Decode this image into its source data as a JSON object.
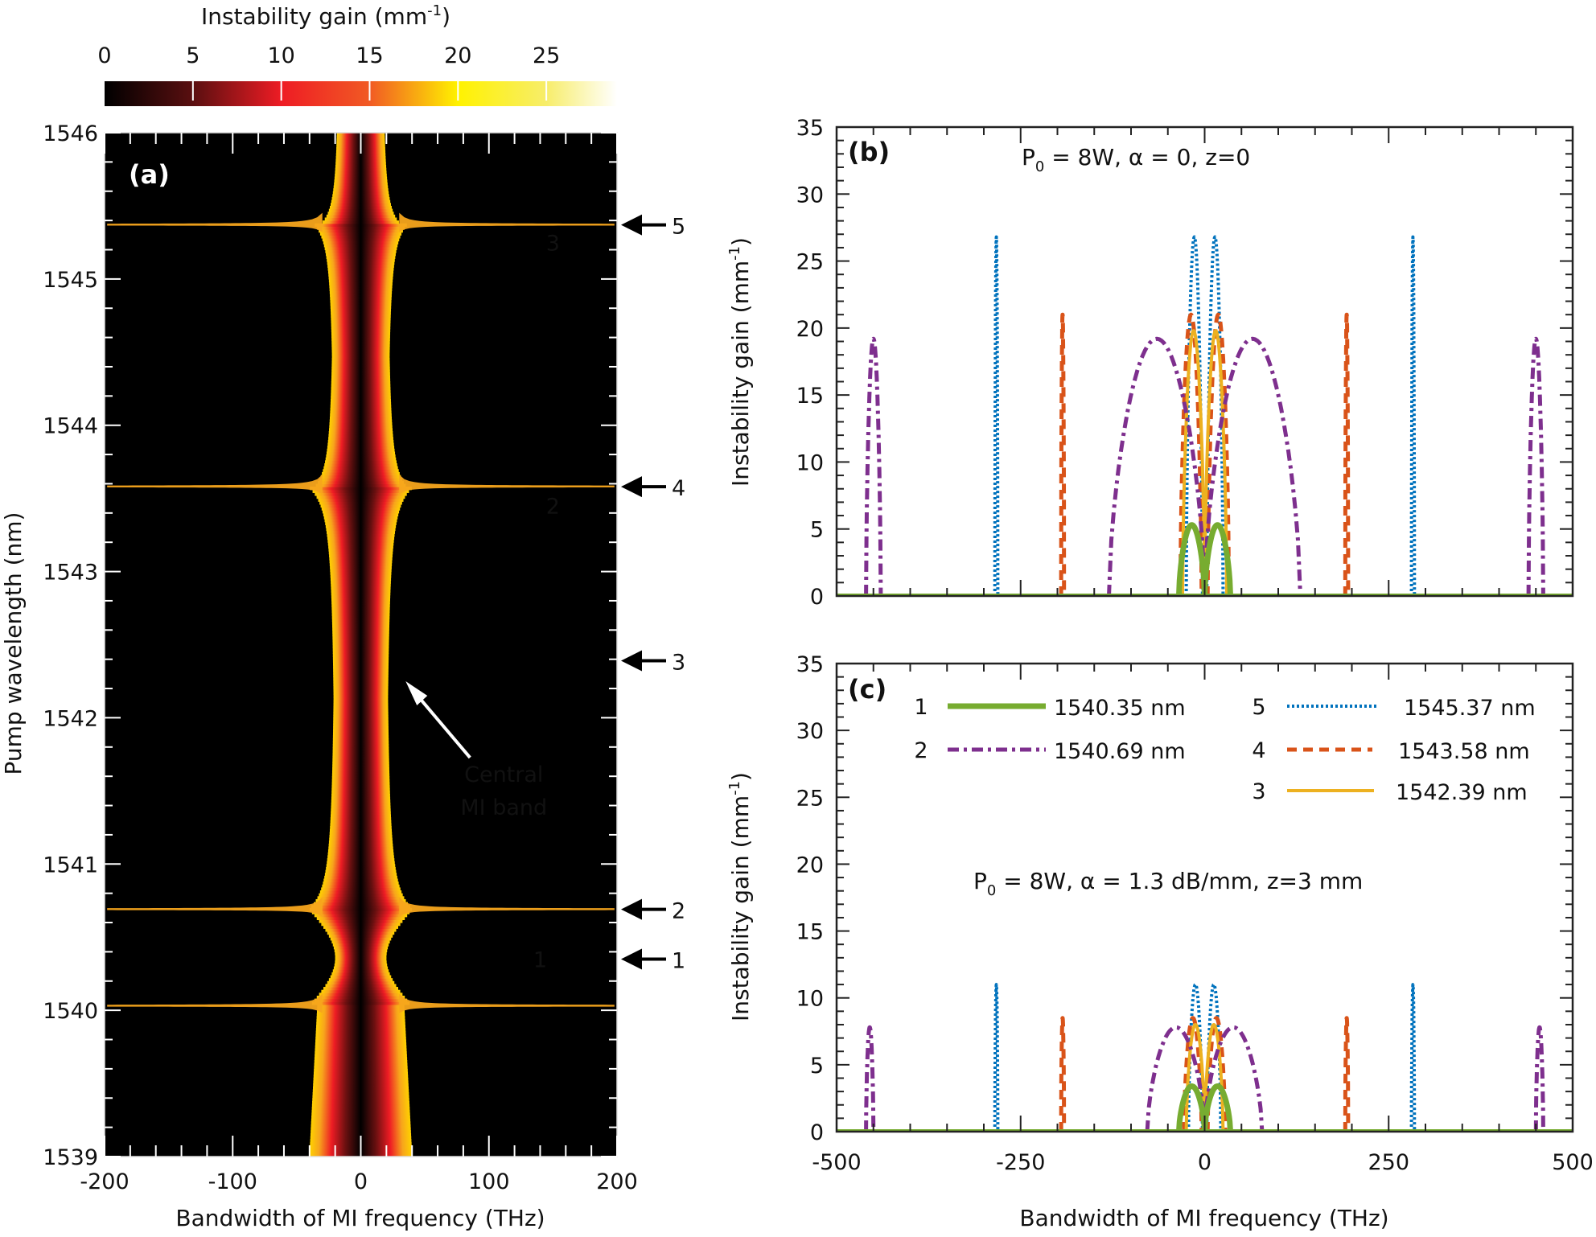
{
  "figure": {
    "colorbar": {
      "title": "Instability gain (mm",
      "title_sup": "-1",
      "title_end": ")",
      "ticks": [
        "0",
        "5",
        "10",
        "15",
        "20",
        "25"
      ],
      "tick_values": [
        0,
        5,
        10,
        15,
        20,
        25
      ],
      "range": [
        0,
        29
      ],
      "stops": [
        {
          "v": 0,
          "color": "#000000"
        },
        {
          "v": 5,
          "color": "#5a0f10"
        },
        {
          "v": 10,
          "color": "#ee1c24"
        },
        {
          "v": 15,
          "color": "#f15a24"
        },
        {
          "v": 20,
          "color": "#fff200"
        },
        {
          "v": 25,
          "color": "#f7ed6a"
        },
        {
          "v": 29,
          "color": "#ffffff"
        }
      ]
    }
  },
  "chart_data": [
    {
      "type": "heatmap",
      "panel_label": "(a)",
      "xlabel": "Bandwidth of MI frequency (THz)",
      "ylabel": "Pump wavelength (nm)",
      "xlim": [
        -200,
        200
      ],
      "ylim": [
        1539,
        1546
      ],
      "xticks": [
        -200,
        -100,
        0,
        100,
        200
      ],
      "xtick_labels": [
        "-200",
        "-100",
        "0",
        "100",
        "200"
      ],
      "yticks": [
        1539,
        1540,
        1541,
        1542,
        1543,
        1544,
        1545,
        1546
      ],
      "ytick_labels": [
        "1539",
        "1540",
        "1541",
        "1542",
        "1543",
        "1544",
        "1545",
        "1546"
      ],
      "description": "Instability gain map versus MI frequency detuning and pump wavelength; central MI band symmetric around 0 THz with side-band resonances near 1540.03, 1540.69, 1543.58 and 1545.37 nm",
      "resonance_lines_nm": [
        1540.03,
        1540.69,
        1543.58,
        1545.37
      ],
      "inner_annotations": [
        {
          "text": "3",
          "x": 150,
          "y": 1545.25
        },
        {
          "text": "2",
          "x": 150,
          "y": 1543.45
        },
        {
          "text": "1",
          "x": 140,
          "y": 1540.35
        }
      ],
      "arrow_annotation": {
        "text_line1": "Central",
        "text_line2": "MI band",
        "points_to_x": 30,
        "points_to_y": 1542.25
      },
      "side_markers": [
        {
          "label": "5",
          "y": 1545.37
        },
        {
          "label": "4",
          "y": 1543.58
        },
        {
          "label": "3",
          "y": 1542.39
        },
        {
          "label": "2",
          "y": 1540.69
        },
        {
          "label": "1",
          "y": 1540.35
        }
      ]
    },
    {
      "type": "line",
      "panel_label": "(b)",
      "annotation": {
        "p": "P",
        "sub": "0",
        "rest": " = 8W, α = 0, z=0"
      },
      "xlabel": "",
      "ylabel": "Instability gain (mm",
      "ylabel_sup": "-1",
      "ylabel_end": ")",
      "xlim": [
        -500,
        500
      ],
      "ylim": [
        0,
        35
      ],
      "yticks": [
        0,
        5,
        10,
        15,
        20,
        25,
        30,
        35
      ],
      "ytick_labels": [
        "0",
        "5",
        "10",
        "15",
        "20",
        "25",
        "30",
        "35"
      ],
      "series": [
        {
          "id": 5,
          "name": "1545.37 nm",
          "style": "dotted",
          "color": "#0072bd",
          "lobes": [
            {
              "x0": -285,
              "x1": -281,
              "peak": 26.8
            },
            {
              "x0": -25,
              "x1": -3,
              "peak": 26.8
            },
            {
              "x0": 3,
              "x1": 25,
              "peak": 26.8
            },
            {
              "x0": 281,
              "x1": 285,
              "peak": 26.8
            }
          ]
        },
        {
          "id": 4,
          "name": "1543.58 nm",
          "style": "dashed",
          "color": "#d95319",
          "lobes": [
            {
              "x0": -195,
              "x1": -191,
              "peak": 21.0
            },
            {
              "x0": -33,
              "x1": -4,
              "peak": 21.0
            },
            {
              "x0": 4,
              "x1": 33,
              "peak": 21.0
            },
            {
              "x0": 191,
              "x1": 195,
              "peak": 21.0
            }
          ]
        },
        {
          "id": 3,
          "name": "1542.39 nm",
          "style": "solid",
          "color": "#edb120",
          "lobes": [
            {
              "x0": -30,
              "x1": 0,
              "peak": 19.8
            },
            {
              "x0": 0,
              "x1": 30,
              "peak": 19.8
            }
          ]
        },
        {
          "id": 2,
          "name": "1540.69 nm",
          "style": "dashdot",
          "color": "#7e2f8e",
          "lobes": [
            {
              "x0": -460,
              "x1": -440,
              "peak": 19.2
            },
            {
              "x0": -130,
              "x1": 0,
              "peak": 19.2
            },
            {
              "x0": 0,
              "x1": 130,
              "peak": 19.2
            },
            {
              "x0": 440,
              "x1": 460,
              "peak": 19.2
            }
          ]
        },
        {
          "id": 1,
          "name": "1540.35 nm",
          "style": "solid-thick",
          "color": "#77ac30",
          "lobes": [
            {
              "x0": -35,
              "x1": 0,
              "peak": 5.3
            },
            {
              "x0": 0,
              "x1": 35,
              "peak": 5.3
            }
          ]
        }
      ]
    },
    {
      "type": "line",
      "panel_label": "(c)",
      "annotation": {
        "p": "P",
        "sub": "0",
        "rest": " = 8W, α = 1.3 dB/mm, z=3 mm"
      },
      "xlabel": "Bandwidth of MI frequency (THz)",
      "ylabel": "Instability gain (mm",
      "ylabel_sup": "-1",
      "ylabel_end": ")",
      "xlim": [
        -500,
        500
      ],
      "ylim": [
        0,
        35
      ],
      "xticks": [
        -500,
        -250,
        0,
        250,
        500
      ],
      "xtick_labels": [
        "-500",
        "-250",
        "0",
        "250",
        "500"
      ],
      "yticks": [
        0,
        5,
        10,
        15,
        20,
        25,
        30,
        35
      ],
      "ytick_labels": [
        "0",
        "5",
        "10",
        "15",
        "20",
        "25",
        "30",
        "35"
      ],
      "legend": {
        "placement": "top",
        "entries": [
          {
            "num": "1",
            "label": "1540.35 nm",
            "style": "solid-thick",
            "color": "#77ac30"
          },
          {
            "num": "2",
            "label": "1540.69 nm",
            "style": "dashdot",
            "color": "#7e2f8e"
          },
          {
            "num": "5",
            "label": "1545.37 nm",
            "style": "dotted",
            "color": "#0072bd"
          },
          {
            "num": "4",
            "label": "1543.58 nm",
            "style": "dashed",
            "color": "#d95319"
          },
          {
            "num": "3",
            "label": "1542.39 nm",
            "style": "solid",
            "color": "#edb120"
          }
        ]
      },
      "series": [
        {
          "id": 5,
          "name": "1545.37 nm",
          "style": "dotted",
          "color": "#0072bd",
          "lobes": [
            {
              "x0": -285,
              "x1": -281,
              "peak": 11.0
            },
            {
              "x0": -22,
              "x1": -3,
              "peak": 11.0
            },
            {
              "x0": 3,
              "x1": 22,
              "peak": 11.0
            },
            {
              "x0": 281,
              "x1": 285,
              "peak": 11.0
            }
          ]
        },
        {
          "id": 4,
          "name": "1543.58 nm",
          "style": "dashed",
          "color": "#d95319",
          "lobes": [
            {
              "x0": -195,
              "x1": -191,
              "peak": 8.5
            },
            {
              "x0": -28,
              "x1": -4,
              "peak": 8.5
            },
            {
              "x0": 4,
              "x1": 28,
              "peak": 8.5
            },
            {
              "x0": 191,
              "x1": 195,
              "peak": 8.5
            }
          ]
        },
        {
          "id": 3,
          "name": "1542.39 nm",
          "style": "solid",
          "color": "#edb120",
          "lobes": [
            {
              "x0": -25,
              "x1": 0,
              "peak": 8.0
            },
            {
              "x0": 0,
              "x1": 25,
              "peak": 8.0
            }
          ]
        },
        {
          "id": 2,
          "name": "1540.69 nm",
          "style": "dashdot",
          "color": "#7e2f8e",
          "lobes": [
            {
              "x0": -460,
              "x1": -450,
              "peak": 7.8
            },
            {
              "x0": -78,
              "x1": 0,
              "peak": 7.8
            },
            {
              "x0": 0,
              "x1": 78,
              "peak": 7.8
            },
            {
              "x0": 450,
              "x1": 460,
              "peak": 7.8
            }
          ]
        },
        {
          "id": 1,
          "name": "1540.35 nm",
          "style": "solid-thick",
          "color": "#77ac30",
          "lobes": [
            {
              "x0": -35,
              "x1": 0,
              "peak": 3.4
            },
            {
              "x0": 0,
              "x1": 35,
              "peak": 3.4
            }
          ]
        }
      ]
    }
  ]
}
